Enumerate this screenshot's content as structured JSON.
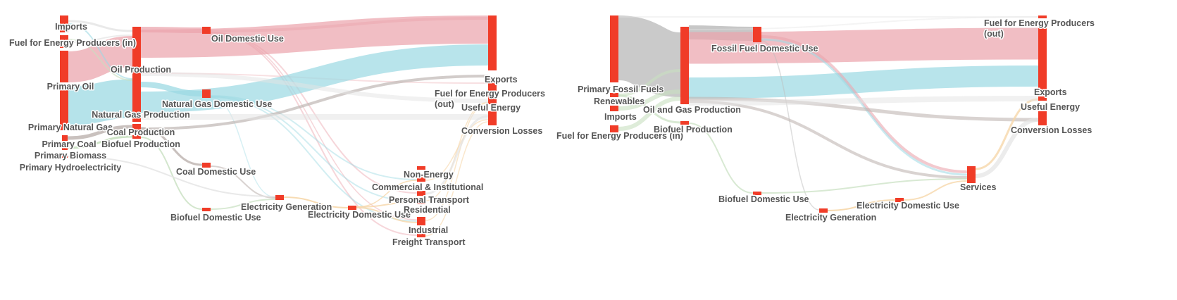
{
  "colors": {
    "node": "#f03c28",
    "oil": "#eba5ad",
    "gas": "#9cd9e3",
    "coal": "#bfb6b3",
    "biofuel": "#c8e0c0",
    "hydro": "#e4e4e4",
    "electricity": "#f6d7aa",
    "fossil": "#bdbdbd"
  },
  "diagrams": [
    {
      "name": "left-sankey",
      "nodes": [
        {
          "id": "imports",
          "label": "Imports"
        },
        {
          "id": "fuel_in",
          "label": "Fuel for Energy Producers (in)"
        },
        {
          "id": "primary_oil",
          "label": "Primary Oil"
        },
        {
          "id": "primary_gas",
          "label": "Primary Natural Gas"
        },
        {
          "id": "primary_coal",
          "label": "Primary Coal"
        },
        {
          "id": "primary_biomass",
          "label": "Primary Biomass"
        },
        {
          "id": "primary_hydro",
          "label": "Primary Hydroelectricity"
        },
        {
          "id": "oil_prod",
          "label": "Oil Production"
        },
        {
          "id": "gas_prod",
          "label": "Natural Gas Production"
        },
        {
          "id": "coal_prod",
          "label": "Coal Production"
        },
        {
          "id": "bio_prod",
          "label": "Biofuel Production"
        },
        {
          "id": "oil_dom",
          "label": "Oil Domestic Use"
        },
        {
          "id": "gas_dom",
          "label": "Natural Gas Domestic Use"
        },
        {
          "id": "coal_dom",
          "label": "Coal Domestic Use"
        },
        {
          "id": "bio_dom",
          "label": "Biofuel Domestic Use"
        },
        {
          "id": "elec_gen",
          "label": "Electricity Generation"
        },
        {
          "id": "elec_dom",
          "label": "Electricity Domestic Use"
        },
        {
          "id": "non_energy",
          "label": "Non-Energy"
        },
        {
          "id": "commercial",
          "label": "Commercial & Institutional"
        },
        {
          "id": "personal",
          "label": "Personal Transport"
        },
        {
          "id": "residential",
          "label": "Residential"
        },
        {
          "id": "industrial",
          "label": "Industrial"
        },
        {
          "id": "freight",
          "label": "Freight Transport"
        },
        {
          "id": "exports",
          "label": "Exports"
        },
        {
          "id": "fuel_out",
          "label": "Fuel for Energy Producers",
          "label2": "(out)"
        },
        {
          "id": "useful",
          "label": "Useful Energy"
        },
        {
          "id": "losses",
          "label": "Conversion Losses"
        }
      ]
    },
    {
      "name": "right-sankey",
      "nodes": [
        {
          "id": "primary_fossil",
          "label": "Primary Fossil Fuels"
        },
        {
          "id": "renewables",
          "label": "Renewables"
        },
        {
          "id": "imports",
          "label": "Imports"
        },
        {
          "id": "fuel_in",
          "label": "Fuel for Energy Producers (in)"
        },
        {
          "id": "fossil_dom",
          "label": "Fossil Fuel Domestic Use"
        },
        {
          "id": "oilgas_prod",
          "label": "Oil and Gas Production"
        },
        {
          "id": "bio_prod",
          "label": "Biofuel Production"
        },
        {
          "id": "bio_dom",
          "label": "Biofuel Domestic Use"
        },
        {
          "id": "elec_gen",
          "label": "Electricity Generation"
        },
        {
          "id": "elec_dom",
          "label": "Electricity Domestic Use"
        },
        {
          "id": "services",
          "label": "Services"
        },
        {
          "id": "fuel_out",
          "label": "Fuel for Energy Producers",
          "label2": "(out)"
        },
        {
          "id": "exports",
          "label": "Exports"
        },
        {
          "id": "useful",
          "label": "Useful Energy"
        },
        {
          "id": "losses",
          "label": "Conversion Losses"
        }
      ]
    }
  ]
}
